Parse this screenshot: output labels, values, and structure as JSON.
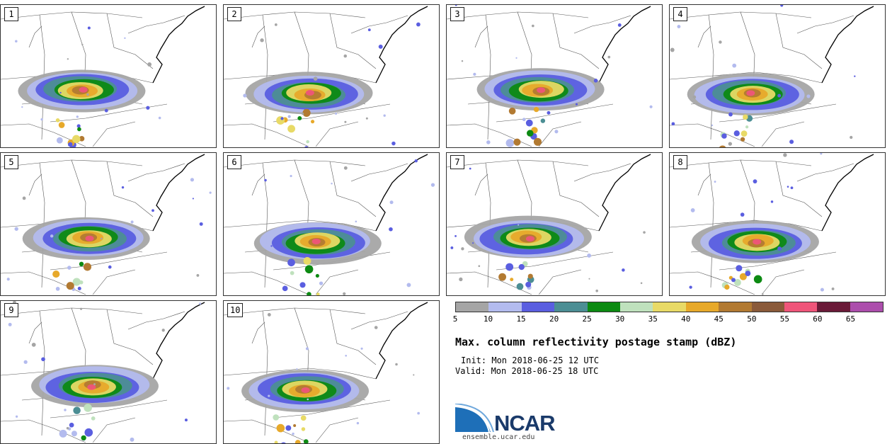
{
  "panels": [
    {
      "label": "1"
    },
    {
      "label": "2"
    },
    {
      "label": "3"
    },
    {
      "label": "4"
    },
    {
      "label": "5"
    },
    {
      "label": "6"
    },
    {
      "label": "7"
    },
    {
      "label": "8"
    },
    {
      "label": "9"
    },
    {
      "label": "10"
    }
  ],
  "colorbar": {
    "ticks": [
      "5",
      "10",
      "15",
      "20",
      "25",
      "30",
      "35",
      "40",
      "45",
      "50",
      "55",
      "60",
      "65"
    ],
    "colors": [
      "#a5a5a5",
      "#b3bbee",
      "#5a5ee0",
      "#4c8e94",
      "#0c8a12",
      "#bfe1bd",
      "#e8da66",
      "#e7a92a",
      "#b27a32",
      "#8a5a3a",
      "#ef557a",
      "#6a1a38",
      "#ac4eac"
    ]
  },
  "title": "Max. column reflectivity postage stamp (dBZ)",
  "init_line": "Init: Mon 2018-06-25 12 UTC",
  "valid_line": "Valid: Mon 2018-06-25 18 UTC",
  "logo": {
    "text": "NCAR",
    "url": "ensemble.ucar.edu"
  }
}
